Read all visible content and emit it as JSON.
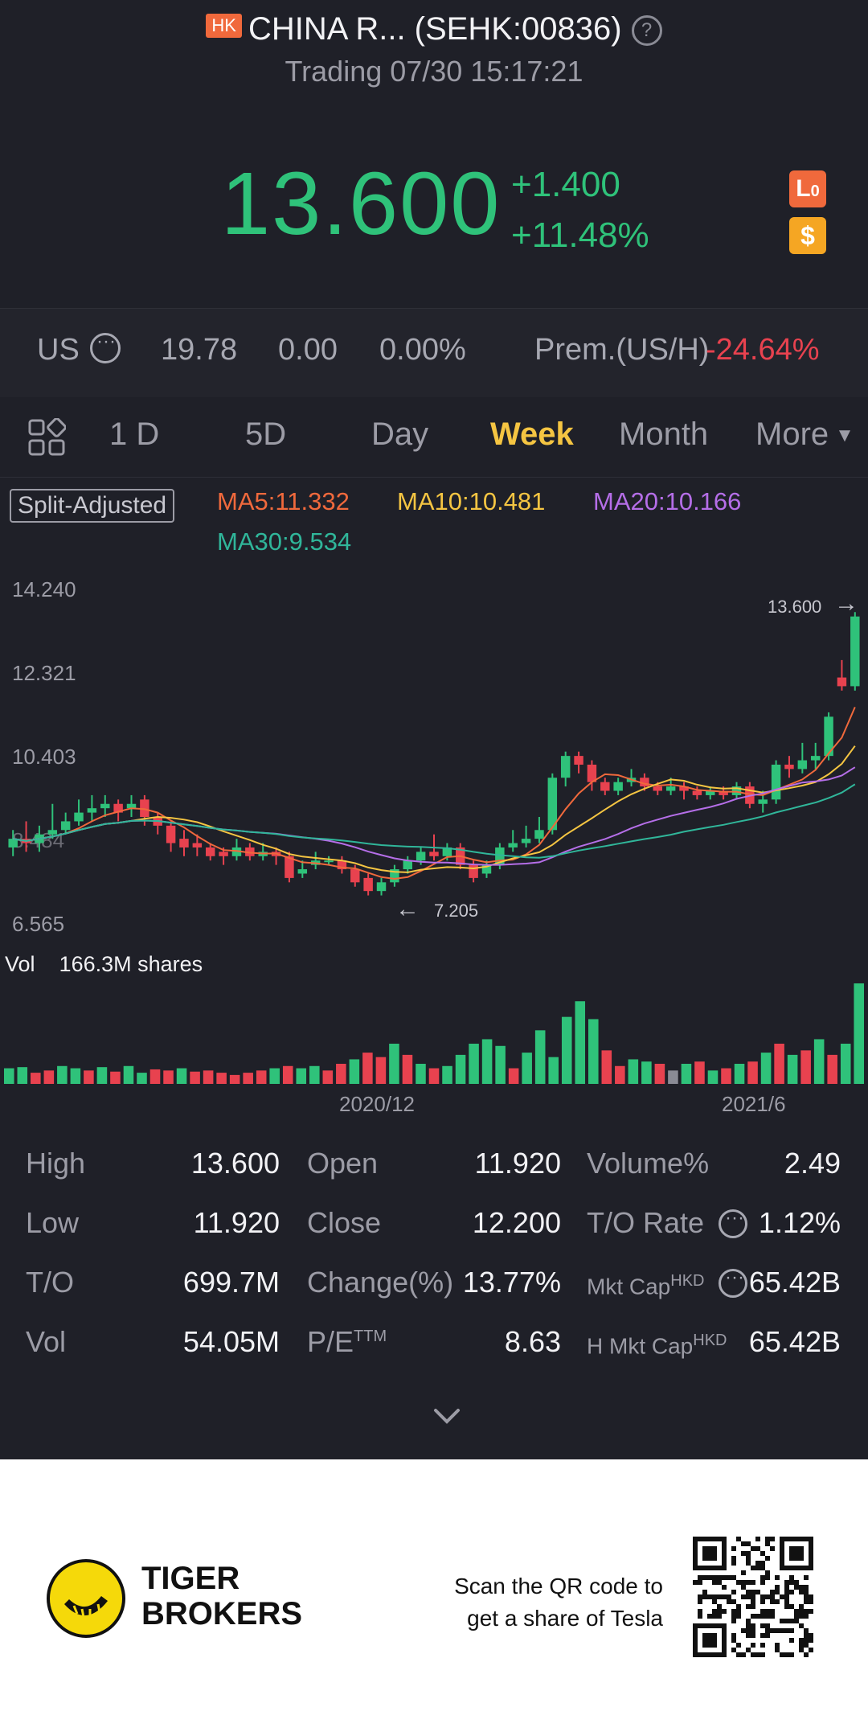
{
  "header": {
    "market_badge": "HK",
    "title": "CHINA R... (SEHK:00836)",
    "status": "Trading 07/30 15:17:21",
    "price": "13.600",
    "change_abs": "+1.400",
    "change_pct": "+11.48%",
    "badge_lo": "L0",
    "badge_dollar": "$",
    "colors": {
      "up": "#2fc27a",
      "down": "#e8424f",
      "active_tab": "#f5c542"
    }
  },
  "us_row": {
    "label": "US",
    "price": "19.78",
    "change": "0.00",
    "change_pct": "0.00%",
    "premium_label": "Prem.(US/H)",
    "premium_value": "-24.64%"
  },
  "tabs": [
    "1 D",
    "5D",
    "Day",
    "Week",
    "Month",
    "More"
  ],
  "active_tab": "Week",
  "chart_header": {
    "split": "Split-Adjusted",
    "ma5": "MA5:11.332",
    "ma10": "MA10:10.481",
    "ma20": "MA20:10.166",
    "ma30": "MA30:9.534"
  },
  "chart_data": {
    "type": "candlestick",
    "y_ticks": [
      "14.240",
      "12.321",
      "10.403",
      "8.484",
      "6.565"
    ],
    "ylim": [
      6.565,
      14.24
    ],
    "last_price_label": "13.600",
    "low_marker_label": "7.205",
    "x_ticks": [
      "2020/12",
      "2021/6"
    ],
    "volume_label": "Vol",
    "volume_value": "166.3M shares",
    "candles": [
      {
        "o": 8.3,
        "c": 8.5,
        "h": 8.7,
        "l": 8.1
      },
      {
        "o": 8.5,
        "c": 8.4,
        "h": 8.9,
        "l": 8.2
      },
      {
        "o": 8.4,
        "c": 8.6,
        "h": 8.8,
        "l": 8.2
      },
      {
        "o": 8.6,
        "c": 8.7,
        "h": 9.3,
        "l": 8.5
      },
      {
        "o": 8.7,
        "c": 8.9,
        "h": 9.1,
        "l": 8.6
      },
      {
        "o": 8.9,
        "c": 9.1,
        "h": 9.4,
        "l": 8.8
      },
      {
        "o": 9.1,
        "c": 9.2,
        "h": 9.5,
        "l": 8.9
      },
      {
        "o": 9.2,
        "c": 9.3,
        "h": 9.5,
        "l": 9.0
      },
      {
        "o": 9.3,
        "c": 9.1,
        "h": 9.4,
        "l": 8.9
      },
      {
        "o": 9.2,
        "c": 9.3,
        "h": 9.5,
        "l": 9.0
      },
      {
        "o": 9.4,
        "c": 9.0,
        "h": 9.5,
        "l": 8.8
      },
      {
        "o": 9.0,
        "c": 8.8,
        "h": 9.1,
        "l": 8.6
      },
      {
        "o": 8.8,
        "c": 8.4,
        "h": 8.9,
        "l": 8.2
      },
      {
        "o": 8.5,
        "c": 8.3,
        "h": 8.7,
        "l": 8.1
      },
      {
        "o": 8.4,
        "c": 8.3,
        "h": 8.6,
        "l": 8.1
      },
      {
        "o": 8.3,
        "c": 8.1,
        "h": 8.4,
        "l": 8.0
      },
      {
        "o": 8.2,
        "c": 8.1,
        "h": 8.3,
        "l": 7.9
      },
      {
        "o": 8.1,
        "c": 8.3,
        "h": 8.5,
        "l": 8.0
      },
      {
        "o": 8.3,
        "c": 8.1,
        "h": 8.4,
        "l": 8.0
      },
      {
        "o": 8.1,
        "c": 8.2,
        "h": 8.4,
        "l": 8.0
      },
      {
        "o": 8.2,
        "c": 8.1,
        "h": 8.3,
        "l": 7.9
      },
      {
        "o": 8.1,
        "c": 7.6,
        "h": 8.2,
        "l": 7.5
      },
      {
        "o": 7.7,
        "c": 7.8,
        "h": 8.0,
        "l": 7.6
      },
      {
        "o": 7.9,
        "c": 8.0,
        "h": 8.2,
        "l": 7.8
      },
      {
        "o": 8.0,
        "c": 8.0,
        "h": 8.1,
        "l": 7.9
      },
      {
        "o": 8.0,
        "c": 7.8,
        "h": 8.1,
        "l": 7.7
      },
      {
        "o": 7.8,
        "c": 7.5,
        "h": 7.9,
        "l": 7.4
      },
      {
        "o": 7.6,
        "c": 7.3,
        "h": 7.7,
        "l": 7.2
      },
      {
        "o": 7.3,
        "c": 7.5,
        "h": 7.6,
        "l": 7.2
      },
      {
        "o": 7.5,
        "c": 7.8,
        "h": 7.9,
        "l": 7.4
      },
      {
        "o": 7.8,
        "c": 8.0,
        "h": 8.1,
        "l": 7.7
      },
      {
        "o": 8.0,
        "c": 8.2,
        "h": 8.3,
        "l": 7.9
      },
      {
        "o": 8.2,
        "c": 8.1,
        "h": 8.6,
        "l": 8.0
      },
      {
        "o": 8.1,
        "c": 8.3,
        "h": 8.4,
        "l": 8.0
      },
      {
        "o": 8.3,
        "c": 7.9,
        "h": 8.4,
        "l": 7.8
      },
      {
        "o": 7.9,
        "c": 7.6,
        "h": 8.0,
        "l": 7.5
      },
      {
        "o": 7.7,
        "c": 7.9,
        "h": 8.0,
        "l": 7.6
      },
      {
        "o": 7.9,
        "c": 8.3,
        "h": 8.4,
        "l": 7.8
      },
      {
        "o": 8.3,
        "c": 8.4,
        "h": 8.7,
        "l": 8.2
      },
      {
        "o": 8.4,
        "c": 8.5,
        "h": 8.8,
        "l": 8.3
      },
      {
        "o": 8.5,
        "c": 8.7,
        "h": 9.0,
        "l": 8.4
      },
      {
        "o": 8.7,
        "c": 9.9,
        "h": 10.0,
        "l": 8.6
      },
      {
        "o": 9.9,
        "c": 10.4,
        "h": 10.5,
        "l": 9.7
      },
      {
        "o": 10.4,
        "c": 10.2,
        "h": 10.5,
        "l": 10.0
      },
      {
        "o": 10.2,
        "c": 9.8,
        "h": 10.3,
        "l": 9.6
      },
      {
        "o": 9.8,
        "c": 9.6,
        "h": 9.9,
        "l": 9.5
      },
      {
        "o": 9.6,
        "c": 9.8,
        "h": 9.9,
        "l": 9.5
      },
      {
        "o": 9.8,
        "c": 9.9,
        "h": 10.1,
        "l": 9.7
      },
      {
        "o": 9.9,
        "c": 9.7,
        "h": 10.0,
        "l": 9.6
      },
      {
        "o": 9.7,
        "c": 9.6,
        "h": 9.8,
        "l": 9.5
      },
      {
        "o": 9.6,
        "c": 9.7,
        "h": 9.9,
        "l": 9.5
      },
      {
        "o": 9.7,
        "c": 9.6,
        "h": 9.8,
        "l": 9.4
      },
      {
        "o": 9.6,
        "c": 9.5,
        "h": 9.7,
        "l": 9.4
      },
      {
        "o": 9.5,
        "c": 9.6,
        "h": 9.7,
        "l": 9.4
      },
      {
        "o": 9.6,
        "c": 9.5,
        "h": 9.7,
        "l": 9.4
      },
      {
        "o": 9.5,
        "c": 9.7,
        "h": 9.8,
        "l": 9.4
      },
      {
        "o": 9.7,
        "c": 9.3,
        "h": 9.8,
        "l": 9.2
      },
      {
        "o": 9.3,
        "c": 9.4,
        "h": 9.6,
        "l": 9.1
      },
      {
        "o": 9.4,
        "c": 10.2,
        "h": 10.3,
        "l": 9.3
      },
      {
        "o": 10.2,
        "c": 10.1,
        "h": 10.4,
        "l": 9.9
      },
      {
        "o": 10.1,
        "c": 10.3,
        "h": 10.7,
        "l": 10.0
      },
      {
        "o": 10.3,
        "c": 10.4,
        "h": 10.7,
        "l": 10.1
      },
      {
        "o": 10.4,
        "c": 11.3,
        "h": 11.4,
        "l": 10.3
      },
      {
        "o": 12.2,
        "c": 12.0,
        "h": 12.6,
        "l": 11.9
      },
      {
        "o": 12.0,
        "c": 13.6,
        "h": 13.7,
        "l": 11.9
      }
    ],
    "volumes": [
      {
        "v": 14,
        "up": true
      },
      {
        "v": 15,
        "up": true
      },
      {
        "v": 10,
        "up": false
      },
      {
        "v": 12,
        "up": false
      },
      {
        "v": 16,
        "up": true
      },
      {
        "v": 14,
        "up": true
      },
      {
        "v": 12,
        "up": false
      },
      {
        "v": 15,
        "up": true
      },
      {
        "v": 11,
        "up": false
      },
      {
        "v": 16,
        "up": true
      },
      {
        "v": 10,
        "up": true
      },
      {
        "v": 13,
        "up": false
      },
      {
        "v": 12,
        "up": false
      },
      {
        "v": 14,
        "up": true
      },
      {
        "v": 11,
        "up": false
      },
      {
        "v": 12,
        "up": false
      },
      {
        "v": 10,
        "up": false
      },
      {
        "v": 8,
        "up": false
      },
      {
        "v": 10,
        "up": false
      },
      {
        "v": 12,
        "up": false
      },
      {
        "v": 14,
        "up": true
      },
      {
        "v": 16,
        "up": false
      },
      {
        "v": 14,
        "up": true
      },
      {
        "v": 16,
        "up": true
      },
      {
        "v": 12,
        "up": false
      },
      {
        "v": 18,
        "up": false
      },
      {
        "v": 22,
        "up": true
      },
      {
        "v": 28,
        "up": false
      },
      {
        "v": 24,
        "up": false
      },
      {
        "v": 36,
        "up": true
      },
      {
        "v": 26,
        "up": false
      },
      {
        "v": 18,
        "up": true
      },
      {
        "v": 14,
        "up": false
      },
      {
        "v": 16,
        "up": true
      },
      {
        "v": 26,
        "up": true
      },
      {
        "v": 36,
        "up": true
      },
      {
        "v": 40,
        "up": true
      },
      {
        "v": 34,
        "up": true
      },
      {
        "v": 14,
        "up": false
      },
      {
        "v": 28,
        "up": true
      },
      {
        "v": 48,
        "up": true
      },
      {
        "v": 24,
        "up": true
      },
      {
        "v": 60,
        "up": true
      },
      {
        "v": 74,
        "up": true
      },
      {
        "v": 58,
        "up": true
      },
      {
        "v": 30,
        "up": false
      },
      {
        "v": 16,
        "up": false
      },
      {
        "v": 22,
        "up": true
      },
      {
        "v": 20,
        "up": true
      },
      {
        "v": 18,
        "up": false
      },
      {
        "v": 12,
        "up": null
      },
      {
        "v": 18,
        "up": true
      },
      {
        "v": 20,
        "up": false
      },
      {
        "v": 12,
        "up": true
      },
      {
        "v": 14,
        "up": false
      },
      {
        "v": 18,
        "up": true
      },
      {
        "v": 20,
        "up": false
      },
      {
        "v": 28,
        "up": true
      },
      {
        "v": 36,
        "up": false
      },
      {
        "v": 26,
        "up": true
      },
      {
        "v": 30,
        "up": false
      },
      {
        "v": 40,
        "up": true
      },
      {
        "v": 26,
        "up": false
      },
      {
        "v": 36,
        "up": true
      },
      {
        "v": 90,
        "up": true
      }
    ]
  },
  "stats": [
    {
      "label": "High",
      "value": "13.600"
    },
    {
      "label": "Open",
      "value": "11.920"
    },
    {
      "label": "Volume%",
      "value": "2.49"
    },
    {
      "label": "Low",
      "value": "11.920"
    },
    {
      "label": "Close",
      "value": "12.200"
    },
    {
      "label": "T/O Rate",
      "value": "1.12%"
    },
    {
      "label": "T/O",
      "value": "699.7M"
    },
    {
      "label": "Change(%)",
      "value": "13.77%"
    },
    {
      "label": "Mkt Cap",
      "label_sup": "HKD",
      "value": "65.42B"
    },
    {
      "label": "Vol",
      "value": "54.05M"
    },
    {
      "label": "P/E",
      "label_sup": "TTM",
      "value": "8.63"
    },
    {
      "label": "H Mkt Cap",
      "label_sup": "HKD",
      "value": "65.42B"
    }
  ],
  "footer": {
    "brand_line1": "TIGER",
    "brand_line2": "BROKERS",
    "promo_line1": "Scan the QR code to",
    "promo_line2": "get a share of Tesla"
  }
}
